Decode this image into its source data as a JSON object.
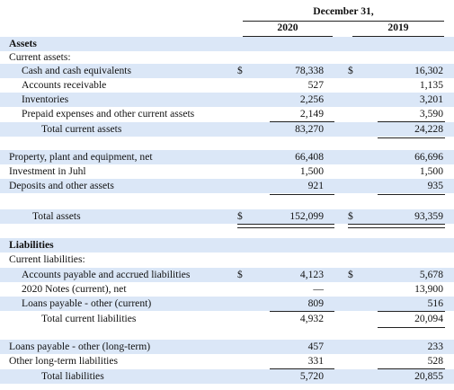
{
  "header": {
    "period": "December 31,",
    "col_2020": "2020",
    "col_2019": "2019"
  },
  "currency_symbol": "$",
  "sections": {
    "assets": "Assets",
    "current_assets": "Current assets:",
    "liabilities": "Liabilities",
    "current_liabilities": "Current liabilities:"
  },
  "rows": [
    {
      "label": "Cash and cash equivalents",
      "v2020": "78,338",
      "v2019": "16,302"
    },
    {
      "label": "Accounts receivable",
      "v2020": "527",
      "v2019": "1,135"
    },
    {
      "label": "Inventories",
      "v2020": "2,256",
      "v2019": "3,201"
    },
    {
      "label": "Prepaid expenses and other current assets",
      "v2020": "2,149",
      "v2019": "3,590"
    },
    {
      "label": "Total current assets",
      "v2020": "83,270",
      "v2019": "24,228"
    },
    {
      "label": "Property, plant and equipment, net",
      "v2020": "66,408",
      "v2019": "66,696"
    },
    {
      "label": "Investment in Juhl",
      "v2020": "1,500",
      "v2019": "1,500"
    },
    {
      "label": "Deposits and other assets",
      "v2020": "921",
      "v2019": "935"
    },
    {
      "label": "Total assets",
      "v2020": "152,099",
      "v2019": "93,359"
    },
    {
      "label": "Accounts payable and accrued liabilities",
      "v2020": "4,123",
      "v2019": "5,678"
    },
    {
      "label": "2020 Notes (current), net",
      "v2020": "—",
      "v2019": "13,900"
    },
    {
      "label": "Loans payable - other (current)",
      "v2020": "809",
      "v2019": "516"
    },
    {
      "label": "Total current liabilities",
      "v2020": "4,932",
      "v2019": "20,094"
    },
    {
      "label": "Loans payable - other (long-term)",
      "v2020": "457",
      "v2019": "233"
    },
    {
      "label": "Other long-term liabilities",
      "v2020": "331",
      "v2019": "528"
    },
    {
      "label": "Total liabilities",
      "v2020": "5,720",
      "v2019": "20,855"
    }
  ]
}
